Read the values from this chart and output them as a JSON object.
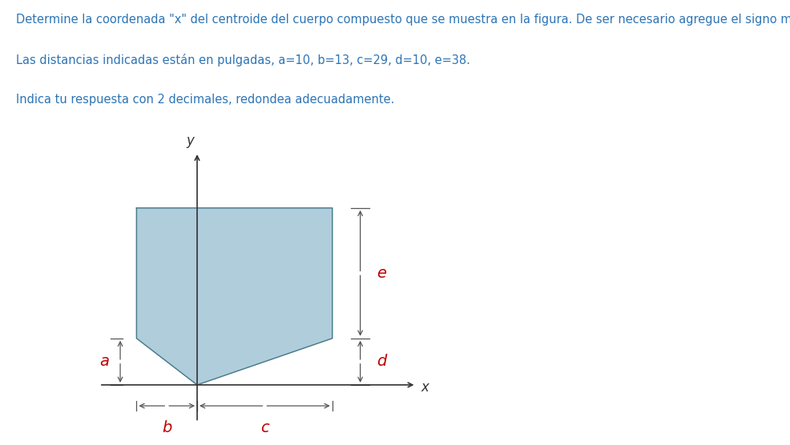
{
  "title_line1": "Determine la coordenada \"x\" del centroide del cuerpo compuesto que se muestra en la figura. De ser necesario agregue el signo menos.",
  "title_line2": "Las distancias indicadas están en pulgadas, a=10, b=13, c=29, d=10, e=38.",
  "title_line3": "Indica tu respuesta con 2 decimales, redondea adecuadamente.",
  "title_color": "#2e75b6",
  "red_color": "#c00000",
  "a": 10,
  "b": 13,
  "c": 29,
  "d": 10,
  "e": 38,
  "shape_fill": "#a8c8d8",
  "shape_edge": "#5a8a9f",
  "axis_color": "#333333"
}
